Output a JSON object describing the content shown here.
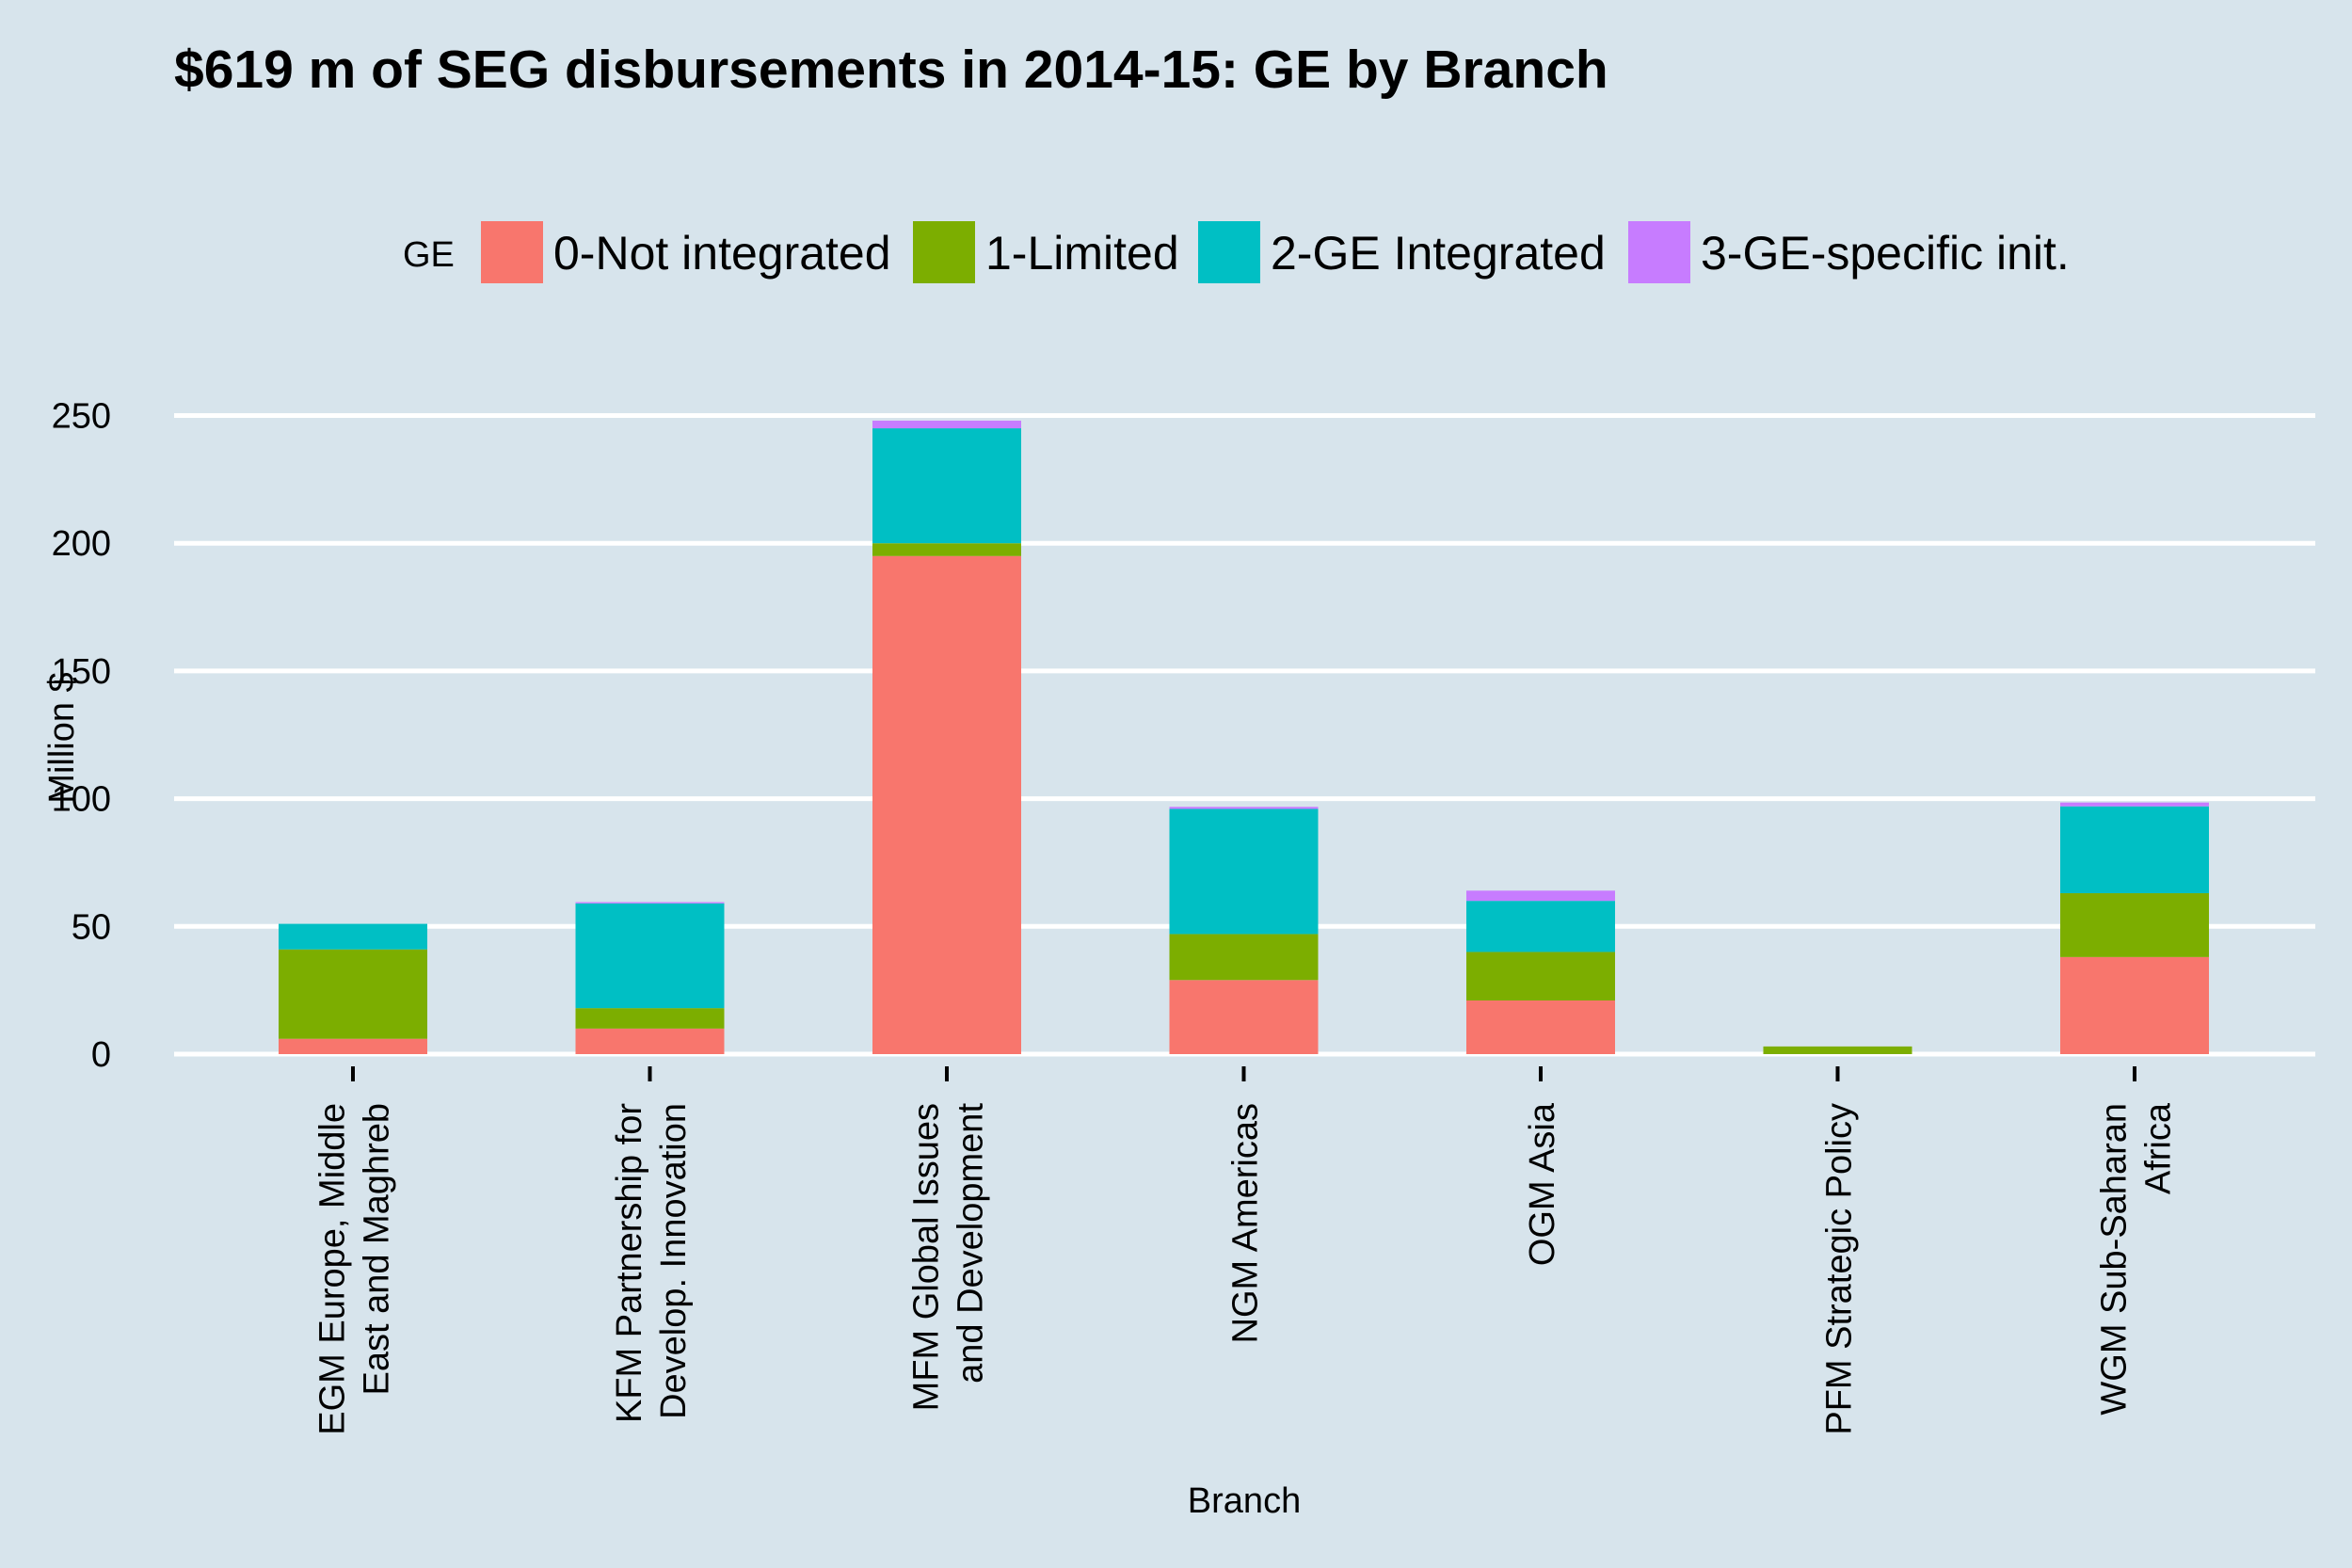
{
  "colors": {
    "background": "#d7e4ec",
    "gridline": "#ffffff",
    "0-Not integrated": "#f8766d",
    "1-Limited": "#7cae00",
    "2-GE Integrated": "#00bfc4",
    "3-GE-specific init.": "#c77cff"
  },
  "chart_data": {
    "type": "bar",
    "stacked": true,
    "title": "$619 m of SEG disbursements in 2014-15: GE by Branch",
    "xlabel": "Branch",
    "ylabel": "Million $",
    "ylim": [
      0,
      260
    ],
    "yticks": [
      0,
      50,
      100,
      150,
      200,
      250
    ],
    "grid": true,
    "legend_title": "GE",
    "legend_position": "top",
    "categories": [
      [
        "EGM Europe, Middle",
        "East and Maghreb"
      ],
      [
        "KFM Partnership for",
        "Develop. Innovation"
      ],
      [
        "MFM Global Issues",
        "and Development"
      ],
      [
        "NGM Americas"
      ],
      [
        "OGM Asia"
      ],
      [
        "PFM Strategic Policy"
      ],
      [
        "WGM Sub-Saharan",
        "Africa"
      ]
    ],
    "series": [
      {
        "name": "0-Not integrated",
        "values": [
          6,
          10,
          195,
          29,
          21,
          0,
          38
        ]
      },
      {
        "name": "1-Limited",
        "values": [
          35,
          8,
          5,
          18,
          19,
          3,
          25
        ]
      },
      {
        "name": "2-GE Integrated",
        "values": [
          10,
          41,
          45,
          49,
          20,
          0,
          34
        ]
      },
      {
        "name": "3-GE-specific init.",
        "values": [
          0,
          0.5,
          3,
          0.8,
          4,
          0,
          1.5
        ]
      }
    ]
  }
}
